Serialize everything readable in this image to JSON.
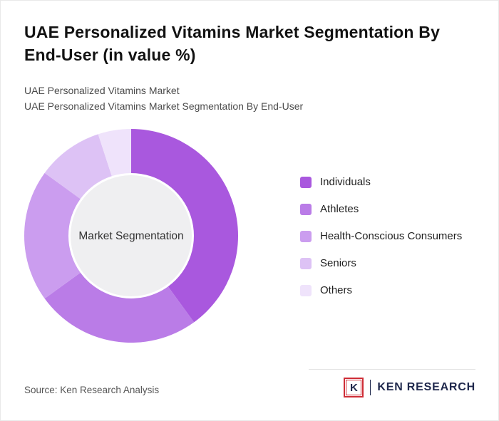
{
  "page": {
    "title": "UAE Personalized Vitamins Market Segmentation By End-User (in value %)",
    "subtitle_line1": "UAE Personalized Vitamins Market",
    "subtitle_line2": "UAE Personalized Vitamins Market Segmentation By End-User",
    "source": "Source: Ken Research Analysis",
    "logo": {
      "letter": "K",
      "brand": "KEN RESEARCH",
      "accent_color": "#cf2f38",
      "text_color": "#20294d"
    }
  },
  "chart_data": {
    "type": "pie",
    "subtype": "donut",
    "title": "UAE Personalized Vitamins Market Segmentation By End-User (in value %)",
    "center_label": "Market Segmentation",
    "categories": [
      "Individuals",
      "Athletes",
      "Health-Conscious Consumers",
      "Seniors",
      "Others"
    ],
    "values": [
      40,
      25,
      20,
      10,
      5
    ],
    "unit": "value %",
    "colors": [
      "#a958de",
      "#ba7ce7",
      "#cb9def",
      "#ddc2f5",
      "#efe3fb"
    ],
    "center_fill": "#efeff1",
    "legend_position": "right",
    "start_angle_deg": -90,
    "direction": "clockwise"
  }
}
